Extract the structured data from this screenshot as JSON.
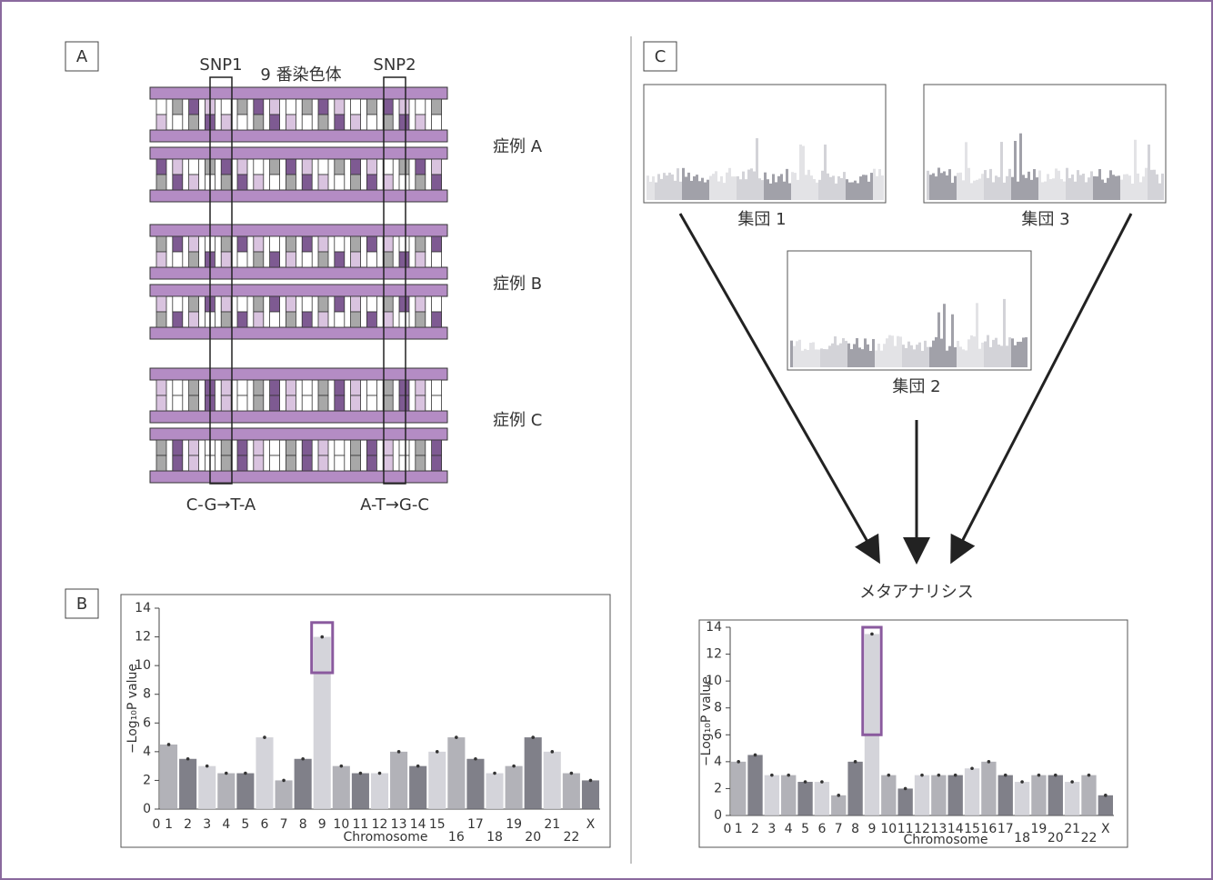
{
  "panels": {
    "A": {
      "label": "A",
      "chromosome_title": "9 番染色体",
      "snp1": "SNP1",
      "snp2": "SNP2",
      "cases": [
        "症例 A",
        "症例 B",
        "症例 C"
      ],
      "snp1_change": "C-G→T-A",
      "snp2_change": "A-T→G-C"
    },
    "B": {
      "label": "B"
    },
    "C": {
      "label": "C",
      "groups": [
        "集団 1",
        "集団 3",
        "集団 2"
      ],
      "meta": "メタアナリシス"
    }
  },
  "chart_data": [
    {
      "type": "manhattan",
      "x_label": "Chromosome",
      "y_label": "−Log₁₀P value",
      "x_origin_label": "0",
      "categories": [
        "1",
        "2",
        "3",
        "4",
        "5",
        "6",
        "7",
        "8",
        "9",
        "10",
        "11",
        "12",
        "13",
        "14",
        "15",
        "16",
        "17",
        "18",
        "19",
        "20",
        "21",
        "22",
        "X"
      ],
      "values": [
        4.5,
        3.5,
        3,
        2.5,
        2.5,
        5,
        2,
        3.5,
        12,
        3,
        2.5,
        2.5,
        4,
        3,
        4,
        5,
        3.5,
        2.5,
        3,
        5,
        4,
        2.5,
        2
      ],
      "colors": [
        "#a4a4ac",
        "#6a6a74",
        "#cdcdd3"
      ],
      "ylim": [
        0,
        14
      ],
      "yticks": [
        0,
        2,
        4,
        6,
        8,
        10,
        12,
        14
      ],
      "highlight": {
        "category": 8,
        "range": [
          9.5,
          13
        ],
        "color": "#8a5a9e"
      }
    },
    {
      "type": "manhattan",
      "x_label": "Chromosome",
      "y_label": "−Log₁₀P value",
      "x_origin_label": "0",
      "categories": [
        "1",
        "2",
        "3",
        "4",
        "5",
        "6",
        "7",
        "8",
        "9",
        "10",
        "11",
        "12",
        "13",
        "14",
        "15",
        "16",
        "17",
        "18",
        "19",
        "20",
        "21",
        "22",
        "X"
      ],
      "values": [
        4,
        4.5,
        3,
        3,
        2.5,
        2.5,
        1.5,
        4,
        13.5,
        3,
        2,
        3,
        3,
        3,
        3.5,
        4,
        3,
        2.5,
        3,
        3,
        2.5,
        3,
        1.5
      ],
      "colors": [
        "#a4a4ac",
        "#6a6a74",
        "#cdcdd3"
      ],
      "ylim": [
        0,
        14
      ],
      "yticks": [
        0,
        2,
        4,
        6,
        8,
        10,
        12,
        14
      ],
      "highlight": {
        "category": 8,
        "range": [
          6,
          14
        ],
        "color": "#8a5a9e"
      }
    }
  ]
}
